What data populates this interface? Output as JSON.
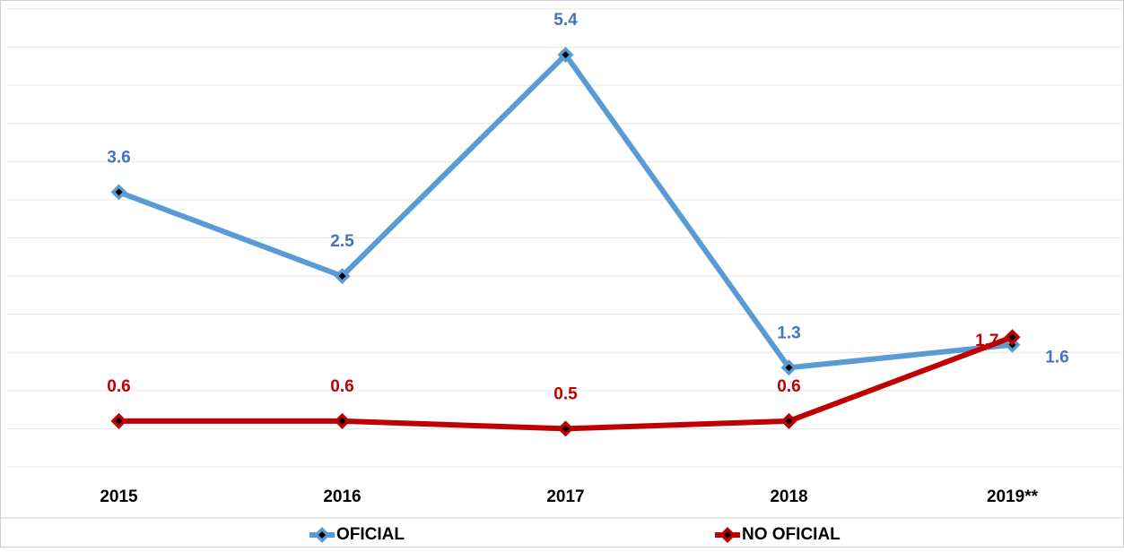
{
  "chart_data": {
    "type": "line",
    "categories": [
      "2015",
      "2016",
      "2017",
      "2018",
      "2019**"
    ],
    "series": [
      {
        "name": "OFICIAL",
        "color": "#5b9bd5",
        "label_color": "#4472c4",
        "values": [
          3.6,
          2.5,
          5.4,
          1.3,
          1.6
        ]
      },
      {
        "name": "NO OFICIAL",
        "color": "#c00000",
        "label_color": "#c00000",
        "values": [
          0.6,
          0.6,
          0.5,
          0.6,
          1.7
        ]
      }
    ],
    "ylim": [
      0,
      6
    ],
    "yticks": [
      0,
      0.5,
      1,
      1.5,
      2,
      2.5,
      3,
      3.5,
      4,
      4.5,
      5,
      5.5,
      6
    ],
    "grid": true
  }
}
